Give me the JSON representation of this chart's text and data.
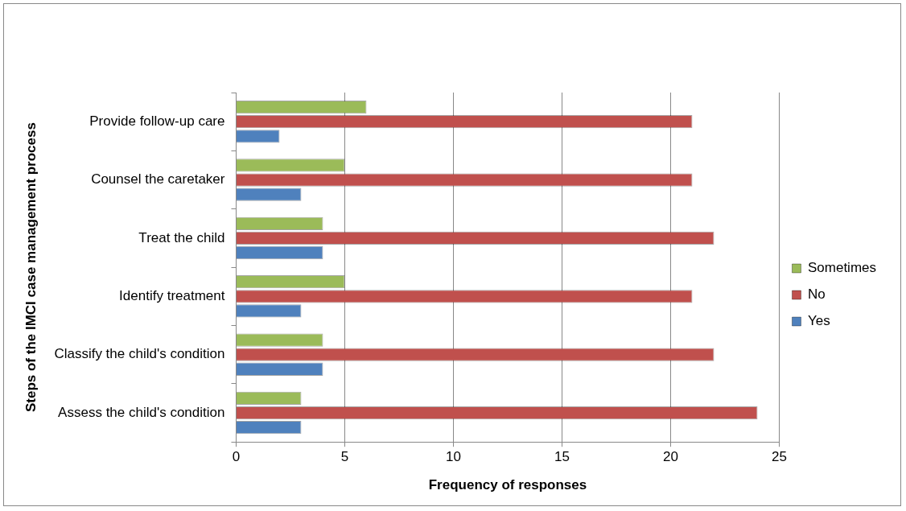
{
  "chart_data": {
    "type": "bar",
    "orientation": "horizontal",
    "xlabel": "Frequency of responses",
    "ylabel": "Steps of the IMCI case management process",
    "categories": [
      "Provide follow-up care",
      "Counsel the caretaker",
      "Treat the child",
      "Identify treatment",
      "Classify the child's condition",
      "Assess the child's condition"
    ],
    "series": [
      {
        "name": "Sometimes",
        "color": "#9bbb59",
        "values": [
          6,
          5,
          4,
          5,
          4,
          3
        ]
      },
      {
        "name": "No",
        "color": "#c0504d",
        "values": [
          21,
          21,
          22,
          21,
          22,
          24
        ]
      },
      {
        "name": "Yes",
        "color": "#4f81bd",
        "values": [
          2,
          3,
          4,
          3,
          4,
          3
        ]
      }
    ],
    "xlim": [
      0,
      25
    ],
    "xticks": [
      0,
      5,
      10,
      15,
      20,
      25
    ],
    "grid": "x",
    "legend": "right"
  }
}
